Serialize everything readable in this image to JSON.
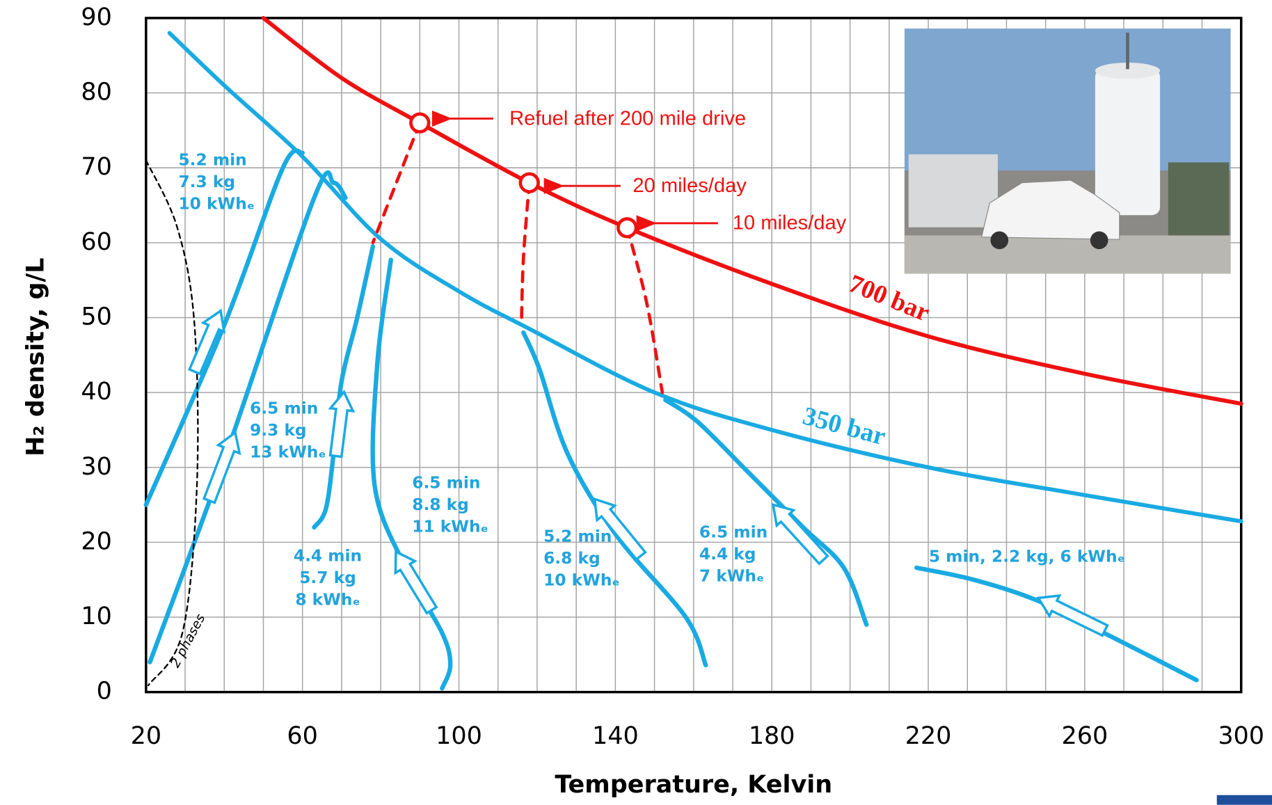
{
  "chart_data": {
    "type": "line",
    "xlabel": "Temperature, Kelvin",
    "ylabel": "H₂ density, g/L",
    "xlim": [
      20,
      300
    ],
    "ylim": [
      0,
      90
    ],
    "xticks": [
      20,
      60,
      100,
      140,
      180,
      220,
      260,
      300
    ],
    "yticks": [
      0,
      10,
      20,
      30,
      40,
      50,
      60,
      70,
      80,
      90
    ],
    "xgrid": [
      20,
      30,
      40,
      50,
      60,
      70,
      80,
      90,
      100,
      110,
      120,
      130,
      140,
      150,
      160,
      170,
      180,
      190,
      200,
      210,
      220,
      230,
      240,
      250,
      260,
      270,
      280,
      290,
      300
    ],
    "grid": true,
    "series": [
      {
        "name": "700 bar",
        "color": "#ee1111",
        "style": "solid",
        "x": [
          50,
          70,
          90,
          118,
          143,
          180,
          220,
          260,
          300
        ],
        "values": [
          90,
          82,
          76,
          68,
          62,
          54.5,
          47.5,
          42.5,
          38.5
        ]
      },
      {
        "name": "350 bar",
        "color": "#1aaae2",
        "style": "solid",
        "x": [
          26,
          40,
          60,
          80,
          100,
          118,
          150,
          180,
          220,
          260,
          300
        ],
        "values": [
          88,
          81,
          71.5,
          60.5,
          53.5,
          48.5,
          40,
          35,
          30,
          26.3,
          22.8
        ]
      },
      {
        "color": "#1aaae2",
        "style": "path",
        "x": [
          20,
          40,
          55,
          60
        ],
        "values": [
          25,
          49,
          70,
          72
        ]
      },
      {
        "color": "#1aaae2",
        "style": "path",
        "x": [
          21,
          40,
          63,
          68,
          71
        ],
        "values": [
          4,
          31,
          66,
          68,
          66
        ]
      },
      {
        "color": "#1aaae2",
        "style": "path",
        "x": [
          63,
          66,
          68,
          70,
          74,
          78
        ],
        "values": [
          22,
          24.5,
          32,
          41.5,
          50,
          59.5
        ]
      },
      {
        "color": "#1aaae2",
        "style": "path",
        "x": [
          82.6,
          79.1,
          78.5,
          86.4,
          95.7,
          97.8,
          95.7
        ],
        "values": [
          57.7,
          43.6,
          27.4,
          16.6,
          7.9,
          3.6,
          0.5
        ]
      },
      {
        "color": "#1aaae2",
        "style": "path",
        "x": [
          116.5,
          120.6,
          127.9,
          140.3,
          158,
          163.1
        ],
        "values": [
          48,
          43.1,
          31.7,
          20.9,
          10,
          3.6
        ]
      },
      {
        "color": "#1aaae2",
        "style": "path",
        "x": [
          152.8,
          161,
          173.5,
          188,
          198.4,
          204.2
        ],
        "values": [
          39,
          36.1,
          29.6,
          22,
          16.6,
          9
        ]
      },
      {
        "color": "#1aaae2",
        "style": "path",
        "x": [
          217,
          231.6,
          248,
          266.8,
          288.6
        ],
        "values": [
          16.6,
          15,
          12.2,
          7.4,
          1.6
        ]
      },
      {
        "color": "#ee1111",
        "style": "dashed",
        "x": [
          90,
          84,
          78
        ],
        "values": [
          76,
          68,
          60
        ]
      },
      {
        "color": "#ee1111",
        "style": "dashed",
        "x": [
          118,
          116.5,
          116
        ],
        "values": [
          68,
          58,
          49.6
        ]
      },
      {
        "color": "#ee1111",
        "style": "dashed",
        "x": [
          143,
          148,
          152
        ],
        "values": [
          62,
          52,
          40
        ]
      },
      {
        "color": "#000000",
        "style": "thin-dashed",
        "x": [
          20,
          28,
          32.4,
          33,
          29.3,
          20.6
        ],
        "values": [
          71,
          62,
          49,
          27.4,
          7.9,
          0.9
        ]
      }
    ],
    "markers": {
      "color": "#ee1111",
      "x": [
        90,
        118,
        143
      ],
      "values": [
        76,
        68,
        62
      ]
    },
    "annotations": [
      [
        "5.2 min",
        "7.3 kg",
        "10 kWhₑ"
      ],
      [
        "6.5 min",
        "9.3 kg",
        "13 kWhₑ"
      ],
      [
        "4.4 min",
        "5.7 kg",
        "8 kWhₑ"
      ],
      [
        "6.5 min",
        "8.8 kg",
        "11 kWhₑ"
      ],
      [
        "5.2 min",
        "6.8 kg",
        "10 kWhₑ"
      ],
      [
        "6.5 min",
        "4.4 kg",
        "7 kWhₑ"
      ],
      [
        "5 min, 2.2 kg, 6 kWhₑ"
      ]
    ],
    "callouts": [
      "Refuel after 200 mile drive",
      "20 miles/day",
      "10 miles/day"
    ],
    "phase_label": "2 phases"
  }
}
